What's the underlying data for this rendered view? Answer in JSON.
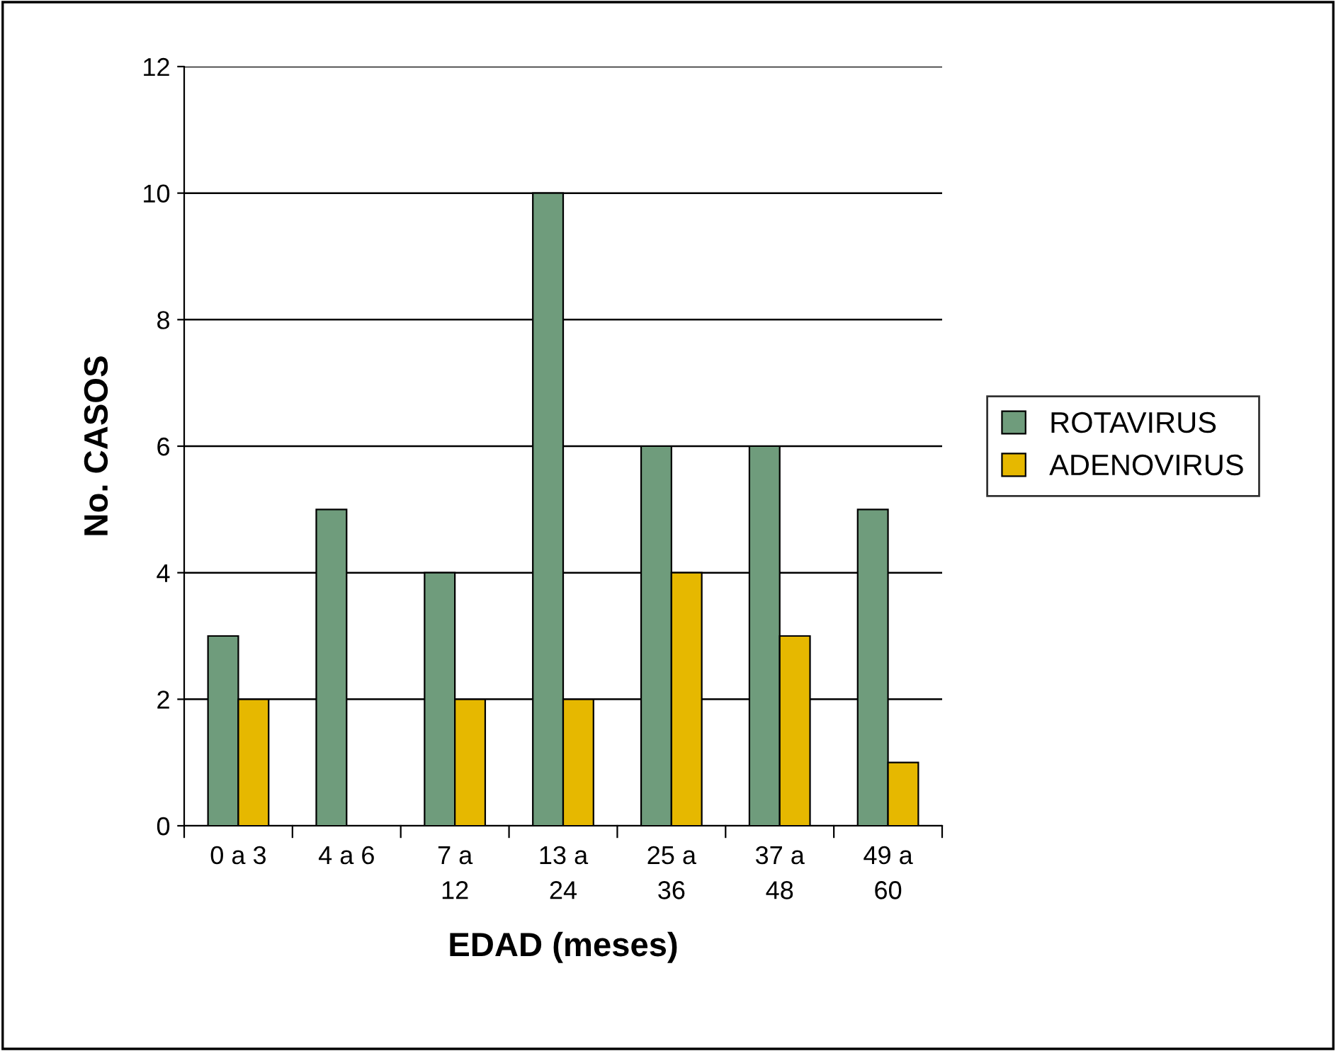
{
  "chart_data": {
    "type": "bar",
    "xlabel": "EDAD (meses)",
    "ylabel": "No. CASOS",
    "categories": [
      "0 a 3",
      "4 a 6",
      "7 a\n12",
      "13 a\n24",
      "25 a\n36",
      "37 a\n48",
      "49 a\n60"
    ],
    "series": [
      {
        "name": "ROTAVIRUS",
        "color": "#6f9c7c",
        "values": [
          3,
          5,
          4,
          10,
          6,
          6,
          5
        ]
      },
      {
        "name": "ADENOVIRUS",
        "color": "#e6b800",
        "values": [
          2,
          0,
          2,
          2,
          4,
          3,
          1
        ]
      }
    ],
    "ylim": [
      0,
      12
    ],
    "yticks": [
      0,
      2,
      4,
      6,
      8,
      10,
      12
    ],
    "grid": "y",
    "legend": "right"
  }
}
